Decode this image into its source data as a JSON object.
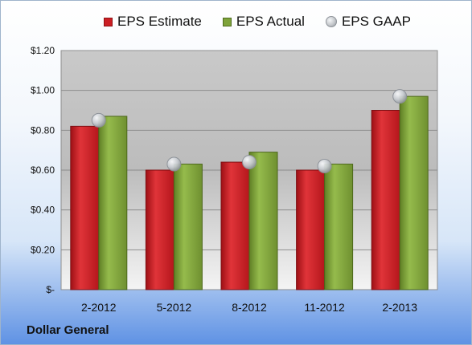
{
  "chart_data": {
    "type": "bar",
    "title": "",
    "company": "Dollar General",
    "categories": [
      "2-2012",
      "5-2012",
      "8-2012",
      "11-2012",
      "2-2013"
    ],
    "series": [
      {
        "name": "EPS Estimate",
        "kind": "bar",
        "color": "#cc1f24",
        "values": [
          0.82,
          0.6,
          0.64,
          0.6,
          0.9
        ]
      },
      {
        "name": "EPS Actual",
        "kind": "bar",
        "color": "#7ea33a",
        "values": [
          0.87,
          0.63,
          0.69,
          0.63,
          0.97
        ]
      },
      {
        "name": "EPS GAAP",
        "kind": "marker",
        "color": "#b8bcc2",
        "values": [
          0.85,
          0.63,
          0.64,
          0.62,
          0.97
        ]
      }
    ],
    "yticks": [
      0,
      0.2,
      0.4,
      0.6,
      0.8,
      1.0,
      1.2
    ],
    "ytick_labels": [
      "$-",
      "$0.20",
      "$0.40",
      "$0.60",
      "$0.80",
      "$1.00",
      "$1.20"
    ],
    "ylim": [
      0,
      1.2
    ],
    "grid": true,
    "legend_position": "top"
  }
}
